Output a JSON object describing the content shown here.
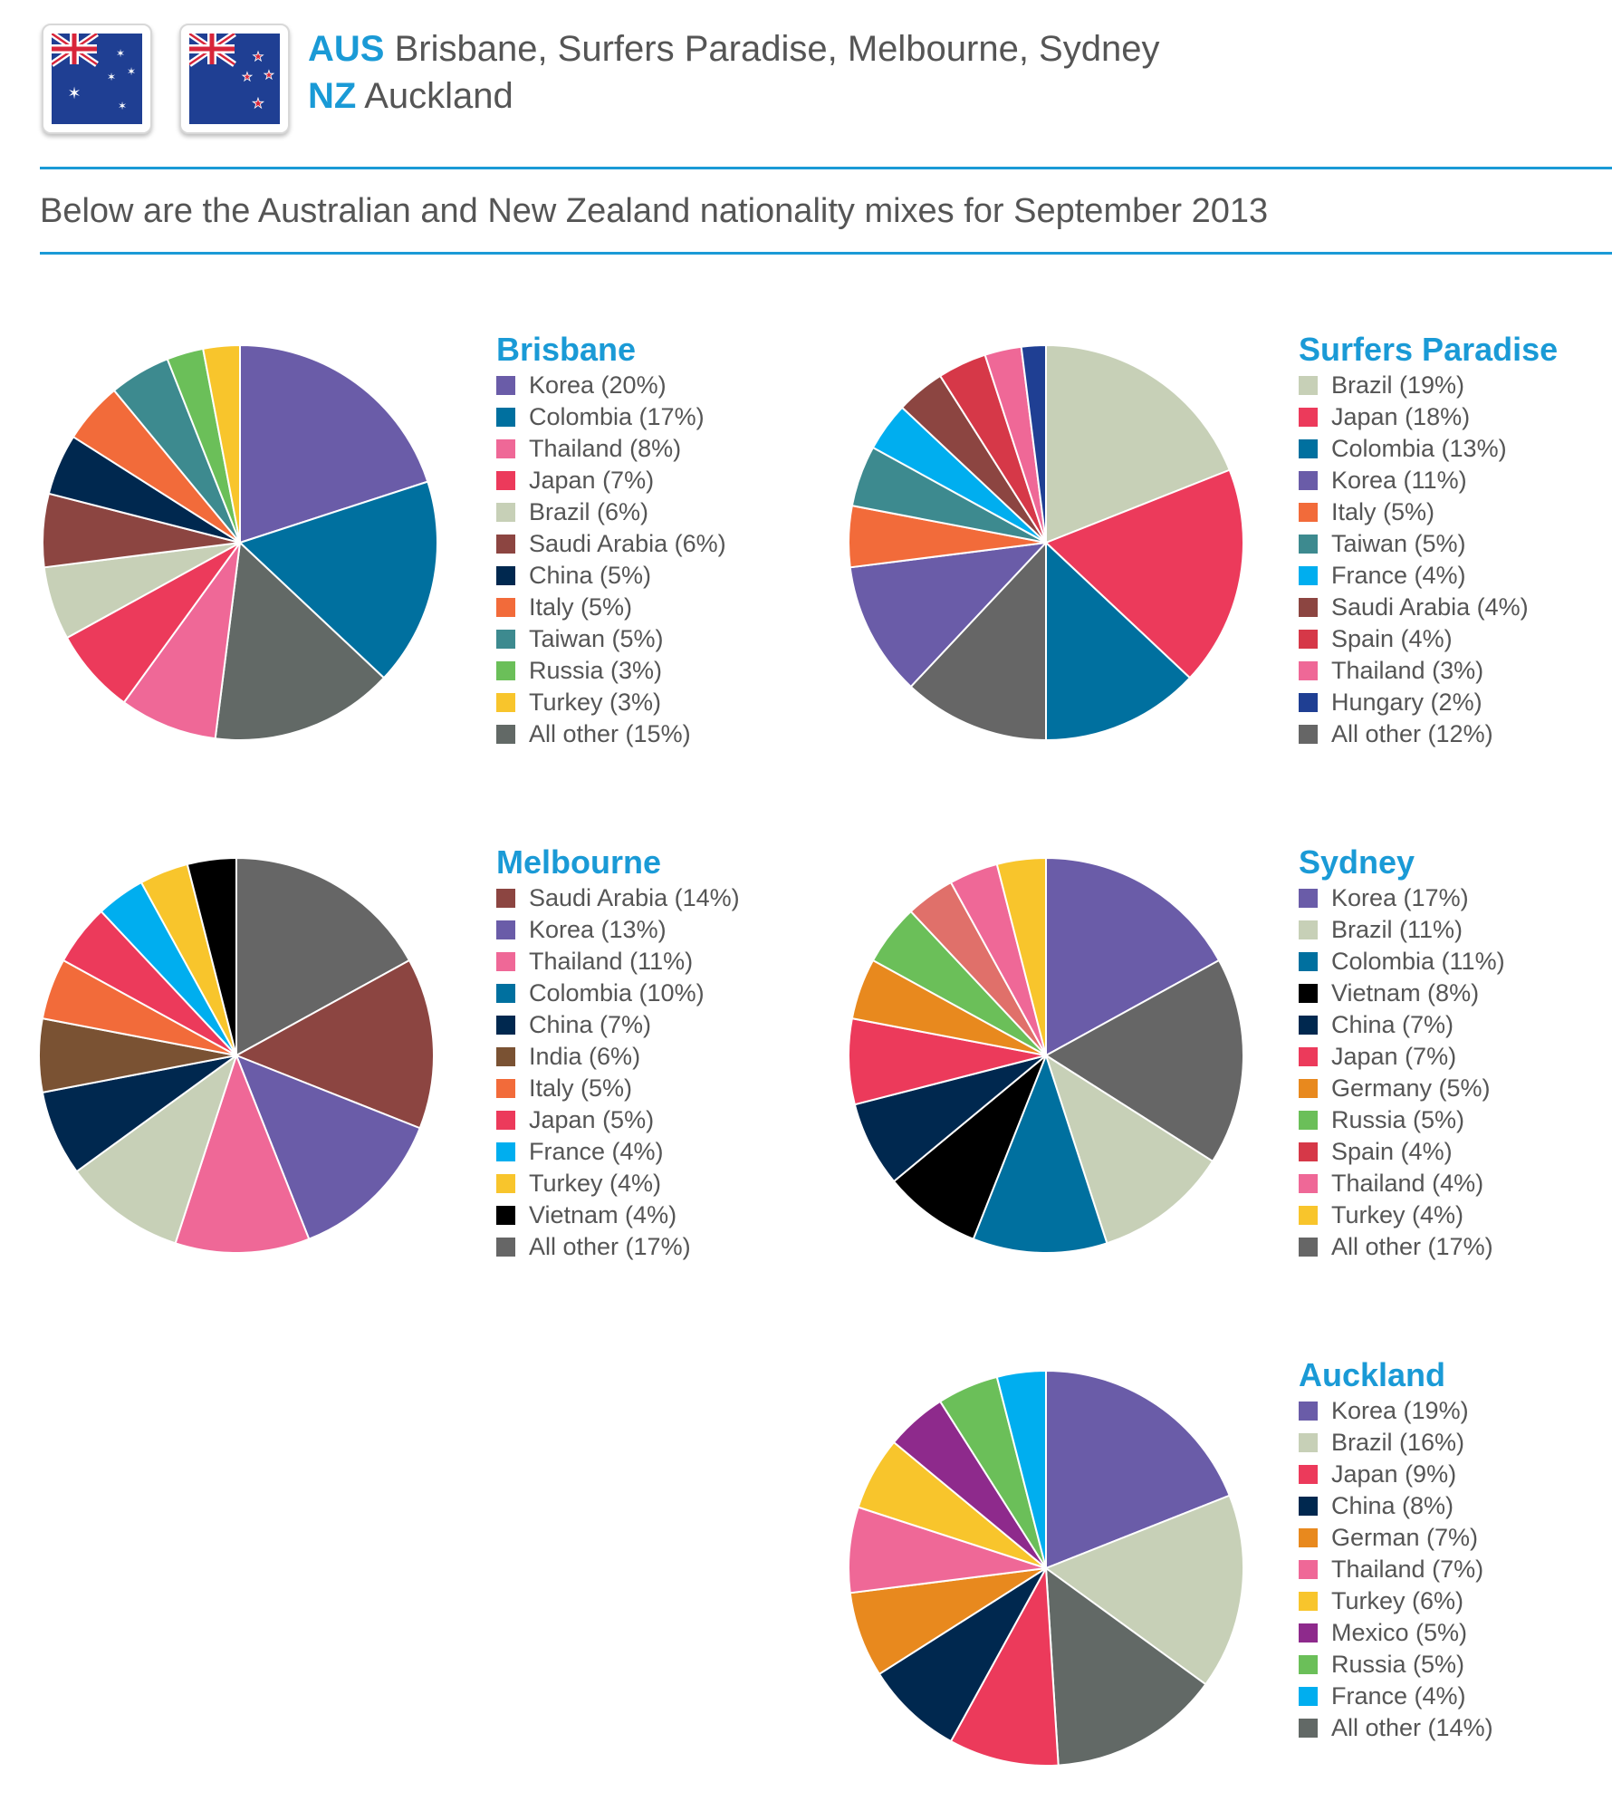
{
  "header": {
    "aus_code": "AUS",
    "aus_cities": "Brisbane, Surfers Paradise, Melbourne, Sydney",
    "nz_code": "NZ",
    "nz_cities": "Auckland",
    "flags": [
      "australia-flag-icon",
      "new-zealand-flag-icon"
    ],
    "accent_color": "#1a9ad6"
  },
  "subtitle": "Below are the Australian and New Zealand nationality mixes for September 2013",
  "chart_data": [
    {
      "type": "pie",
      "title": "Brisbane",
      "slices": [
        {
          "label": "Korea (20%)",
          "value": 20,
          "color": "#6a5ca8"
        },
        {
          "label": "Colombia (17%)",
          "value": 17,
          "color": "#00709f"
        },
        {
          "label": "All other (15%)",
          "value": 15,
          "color": "#626966"
        },
        {
          "label": "Thailand (8%)",
          "value": 8,
          "color": "#ef6897"
        },
        {
          "label": "Japan (7%)",
          "value": 7,
          "color": "#ec3a5b"
        },
        {
          "label": "Brazil (6%)",
          "value": 6,
          "color": "#c7d0b7"
        },
        {
          "label": "Saudi Arabia (6%)",
          "value": 6,
          "color": "#8c4541"
        },
        {
          "label": "China (5%)",
          "value": 5,
          "color": "#00284f"
        },
        {
          "label": "Italy (5%)",
          "value": 5,
          "color": "#f26b3a"
        },
        {
          "label": "Taiwan (5%)",
          "value": 5,
          "color": "#3d8a8f"
        },
        {
          "label": "Russia (3%)",
          "value": 3,
          "color": "#6bbf59"
        },
        {
          "label": "Turkey (3%)",
          "value": 3,
          "color": "#f8c52c"
        }
      ],
      "legend_order": [
        "Korea (20%)",
        "Colombia (17%)",
        "Thailand (8%)",
        "Japan (7%)",
        "Brazil (6%)",
        "Saudi Arabia (6%)",
        "China (5%)",
        "Italy (5%)",
        "Taiwan (5%)",
        "Russia (3%)",
        "Turkey (3%)",
        "All other (15%)"
      ]
    },
    {
      "type": "pie",
      "title": "Surfers Paradise",
      "slices": [
        {
          "label": "Brazil (19%)",
          "value": 19,
          "color": "#c7d0b7"
        },
        {
          "label": "Japan (18%)",
          "value": 18,
          "color": "#ec3a5b"
        },
        {
          "label": "Colombia (13%)",
          "value": 13,
          "color": "#00709f"
        },
        {
          "label": "All other (12%)",
          "value": 12,
          "color": "#666666"
        },
        {
          "label": "Korea (11%)",
          "value": 11,
          "color": "#6a5ca8"
        },
        {
          "label": "Italy (5%)",
          "value": 5,
          "color": "#f26b3a"
        },
        {
          "label": "Taiwan (5%)",
          "value": 5,
          "color": "#3d8a8f"
        },
        {
          "label": "France (4%)",
          "value": 4,
          "color": "#00aeef"
        },
        {
          "label": "Saudi Arabia (4%)",
          "value": 4,
          "color": "#8c4541"
        },
        {
          "label": "Spain (4%)",
          "value": 4,
          "color": "#d63848"
        },
        {
          "label": "Thailand (3%)",
          "value": 3,
          "color": "#ef6897"
        },
        {
          "label": "Hungary (2%)",
          "value": 2,
          "color": "#1f3f93"
        }
      ],
      "legend_order": [
        "Brazil (19%)",
        "Japan (18%)",
        "Colombia (13%)",
        "Korea (11%)",
        "Italy (5%)",
        "Taiwan (5%)",
        "France (4%)",
        "Saudi Arabia (4%)",
        "Spain (4%)",
        "Thailand (3%)",
        "Hungary (2%)",
        "All other (12%)"
      ]
    },
    {
      "type": "pie",
      "title": "Melbourne",
      "slices": [
        {
          "label": "All other (17%)",
          "value": 17,
          "color": "#666666"
        },
        {
          "label": "Saudi Arabia (14%)",
          "value": 14,
          "color": "#8c4541"
        },
        {
          "label": "Korea (13%)",
          "value": 13,
          "color": "#6a5ca8"
        },
        {
          "label": "Thailand (11%)",
          "value": 11,
          "color": "#ef6897"
        },
        {
          "label": "Colombia (10%)",
          "value": 10,
          "color": "#c7d0b7"
        },
        {
          "label": "China (7%)",
          "value": 7,
          "color": "#00284f"
        },
        {
          "label": "India (6%)",
          "value": 6,
          "color": "#7a5233"
        },
        {
          "label": "Italy (5%)",
          "value": 5,
          "color": "#f26b3a"
        },
        {
          "label": "Japan (5%)",
          "value": 5,
          "color": "#ec3a5b"
        },
        {
          "label": "France (4%)",
          "value": 4,
          "color": "#00aeef"
        },
        {
          "label": "Turkey (4%)",
          "value": 4,
          "color": "#f8c52c"
        },
        {
          "label": "Vietnam (4%)",
          "value": 4,
          "color": "#000000"
        }
      ],
      "legend_order": [
        "Saudi Arabia (14%)",
        "Korea (13%)",
        "Thailand (11%)",
        "Colombia (10%)",
        "China (7%)",
        "India (6%)",
        "Italy (5%)",
        "Japan (5%)",
        "France (4%)",
        "Turkey (4%)",
        "Vietnam (4%)",
        "All other (17%)"
      ],
      "legend_colors": {
        "Colombia (10%)": "#00709f"
      }
    },
    {
      "type": "pie",
      "title": "Sydney",
      "slices": [
        {
          "label": "Korea (17%)",
          "value": 17,
          "color": "#6a5ca8"
        },
        {
          "label": "All other (17%)",
          "value": 17,
          "color": "#666666"
        },
        {
          "label": "Brazil (11%)",
          "value": 11,
          "color": "#c7d0b7"
        },
        {
          "label": "Colombia (11%)",
          "value": 11,
          "color": "#00709f"
        },
        {
          "label": "Vietnam (8%)",
          "value": 8,
          "color": "#000000"
        },
        {
          "label": "China (7%)",
          "value": 7,
          "color": "#00284f"
        },
        {
          "label": "Japan (7%)",
          "value": 7,
          "color": "#ec3a5b"
        },
        {
          "label": "Germany (5%)",
          "value": 5,
          "color": "#e8891e"
        },
        {
          "label": "Russia (5%)",
          "value": 5,
          "color": "#6bbf59"
        },
        {
          "label": "Spain (4%)",
          "value": 4,
          "color": "#e0706a"
        },
        {
          "label": "Thailand (4%)",
          "value": 4,
          "color": "#ef6897"
        },
        {
          "label": "Turkey (4%)",
          "value": 4,
          "color": "#f8c52c"
        }
      ],
      "legend_order": [
        "Korea (17%)",
        "Brazil (11%)",
        "Colombia (11%)",
        "Vietnam (8%)",
        "China (7%)",
        "Japan (7%)",
        "Germany (5%)",
        "Russia (5%)",
        "Spain (4%)",
        "Thailand (4%)",
        "Turkey (4%)",
        "All other (17%)"
      ],
      "legend_colors": {
        "Spain (4%)": "#d63848"
      }
    },
    {
      "type": "pie",
      "title": "Auckland",
      "slices": [
        {
          "label": "Korea (19%)",
          "value": 19,
          "color": "#6a5ca8"
        },
        {
          "label": "Brazil (16%)",
          "value": 16,
          "color": "#c7d0b7"
        },
        {
          "label": "All other (14%)",
          "value": 14,
          "color": "#626966"
        },
        {
          "label": "Japan (9%)",
          "value": 9,
          "color": "#ec3a5b"
        },
        {
          "label": "China (8%)",
          "value": 8,
          "color": "#00284f"
        },
        {
          "label": "German (7%)",
          "value": 7,
          "color": "#e8891e"
        },
        {
          "label": "Thailand (7%)",
          "value": 7,
          "color": "#ef6897"
        },
        {
          "label": "Turkey (6%)",
          "value": 6,
          "color": "#f8c52c"
        },
        {
          "label": "Mexico (5%)",
          "value": 5,
          "color": "#8e2a8c"
        },
        {
          "label": "Russia (5%)",
          "value": 5,
          "color": "#6bbf59"
        },
        {
          "label": "France (4%)",
          "value": 4,
          "color": "#00aeef"
        }
      ],
      "legend_order": [
        "Korea (19%)",
        "Brazil (16%)",
        "Japan (9%)",
        "China (8%)",
        "German (7%)",
        "Thailand (7%)",
        "Turkey (6%)",
        "Mexico (5%)",
        "Russia (5%)",
        "France (4%)",
        "All other (14%)"
      ]
    }
  ]
}
